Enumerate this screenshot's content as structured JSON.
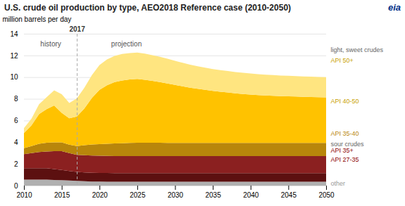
{
  "chart_data": {
    "type": "area",
    "stacked": true,
    "title": "U.S. crude oil production by type, AEO2018 Reference case (2010-2050)",
    "ylabel": "million barrels per day",
    "x": [
      2010,
      2011,
      2012,
      2013,
      2014,
      2015,
      2016,
      2017,
      2018,
      2019,
      2020,
      2021,
      2022,
      2023,
      2024,
      2025,
      2026,
      2027,
      2028,
      2029,
      2030,
      2031,
      2032,
      2033,
      2034,
      2035,
      2036,
      2037,
      2038,
      2039,
      2040,
      2041,
      2042,
      2043,
      2044,
      2045,
      2046,
      2047,
      2048,
      2049,
      2050
    ],
    "series": [
      {
        "name": "other",
        "color": "#b0b0b0",
        "values": [
          0.55,
          0.55,
          0.55,
          0.55,
          0.52,
          0.5,
          0.47,
          0.43,
          0.4,
          0.38,
          0.37,
          0.36,
          0.35,
          0.35,
          0.35,
          0.35,
          0.35,
          0.35,
          0.35,
          0.35,
          0.35,
          0.35,
          0.35,
          0.35,
          0.35,
          0.35,
          0.35,
          0.35,
          0.35,
          0.35,
          0.35,
          0.35,
          0.35,
          0.35,
          0.35,
          0.35,
          0.35,
          0.35,
          0.35,
          0.35,
          0.35
        ]
      },
      {
        "name": "API 27-35",
        "color": "#5c1010",
        "values": [
          1.05,
          1.05,
          1.05,
          1.05,
          1.0,
          0.95,
          0.88,
          0.83,
          0.82,
          0.81,
          0.8,
          0.8,
          0.8,
          0.8,
          0.8,
          0.8,
          0.8,
          0.8,
          0.8,
          0.8,
          0.8,
          0.8,
          0.8,
          0.8,
          0.8,
          0.8,
          0.8,
          0.8,
          0.8,
          0.8,
          0.8,
          0.8,
          0.8,
          0.8,
          0.8,
          0.8,
          0.8,
          0.8,
          0.8,
          0.8,
          0.8
        ]
      },
      {
        "name": "API 35+",
        "color": "#8b2020",
        "values": [
          1.3,
          1.4,
          1.5,
          1.55,
          1.65,
          1.72,
          1.65,
          1.58,
          1.58,
          1.58,
          1.58,
          1.58,
          1.58,
          1.58,
          1.58,
          1.58,
          1.58,
          1.58,
          1.58,
          1.58,
          1.58,
          1.58,
          1.58,
          1.58,
          1.58,
          1.58,
          1.58,
          1.58,
          1.58,
          1.58,
          1.58,
          1.58,
          1.58,
          1.58,
          1.58,
          1.58,
          1.58,
          1.58,
          1.58,
          1.58,
          1.58
        ]
      },
      {
        "name": "API 35-40",
        "color": "#b8860b",
        "values": [
          0.55,
          0.65,
          0.75,
          0.8,
          0.82,
          0.82,
          0.78,
          0.8,
          0.92,
          1.02,
          1.08,
          1.12,
          1.16,
          1.18,
          1.2,
          1.22,
          1.22,
          1.22,
          1.22,
          1.21,
          1.2,
          1.2,
          1.2,
          1.2,
          1.2,
          1.2,
          1.2,
          1.2,
          1.2,
          1.2,
          1.2,
          1.2,
          1.2,
          1.2,
          1.2,
          1.2,
          1.2,
          1.2,
          1.2,
          1.2,
          1.2
        ]
      },
      {
        "name": "API 40-50",
        "color": "#ffc200",
        "values": [
          1.4,
          1.9,
          2.75,
          3.1,
          3.4,
          2.72,
          2.42,
          2.72,
          3.4,
          4.3,
          5.0,
          5.4,
          5.65,
          5.78,
          5.85,
          5.88,
          5.8,
          5.7,
          5.6,
          5.48,
          5.35,
          5.22,
          5.1,
          5.0,
          4.9,
          4.8,
          4.72,
          4.65,
          4.58,
          4.52,
          4.47,
          4.42,
          4.38,
          4.35,
          4.32,
          4.3,
          4.28,
          4.26,
          4.24,
          4.22,
          4.2
        ]
      },
      {
        "name": "API 50+",
        "color": "#ffe580",
        "values": [
          0.45,
          0.62,
          0.9,
          1.1,
          1.4,
          1.72,
          1.42,
          1.68,
          1.9,
          2.1,
          2.28,
          2.38,
          2.42,
          2.44,
          2.44,
          2.44,
          2.42,
          2.38,
          2.33,
          2.28,
          2.22,
          2.17,
          2.12,
          2.08,
          2.05,
          2.02,
          2.0,
          1.98,
          1.96,
          1.95,
          1.94,
          1.93,
          1.92,
          1.91,
          1.9,
          1.89,
          1.88,
          1.88,
          1.87,
          1.87,
          1.87
        ]
      }
    ],
    "xlim": [
      2010,
      2050
    ],
    "ylim": [
      0,
      14
    ],
    "xticks": [
      2010,
      2015,
      2020,
      2025,
      2030,
      2035,
      2040,
      2045,
      2050
    ],
    "yticks": [
      0,
      2,
      4,
      6,
      8,
      10,
      12,
      14
    ],
    "grid": true,
    "annotations": [
      {
        "text": "2017",
        "x": 2017,
        "line_style": "dashed",
        "color": "#333333"
      },
      {
        "text": "history",
        "x": 2013.5,
        "y": 13.3,
        "color": "#555555"
      },
      {
        "text": "projection",
        "x": 2021.5,
        "y": 13.3,
        "color": "#555555"
      },
      {
        "text": "light, sweet crudes",
        "y": 12.55,
        "color": "#666666"
      },
      {
        "text": "API 50+",
        "y": 11.55,
        "color": "#c8a000"
      },
      {
        "text": "API 40-50",
        "y": 7.8,
        "color": "#c8a000"
      },
      {
        "text": "API 35-40",
        "y": 4.85,
        "color": "#b8860b"
      },
      {
        "text": "sour crudes",
        "y": 3.85,
        "color": "#666666"
      },
      {
        "text": "API 35+",
        "y": 3.25,
        "color": "#8b0000"
      },
      {
        "text": "API 27-35",
        "y": 2.45,
        "color": "#8b0000"
      },
      {
        "text": "other",
        "y": 0.2,
        "color": "#999999"
      },
      {
        "text": "eia",
        "color": "#003087"
      }
    ]
  }
}
